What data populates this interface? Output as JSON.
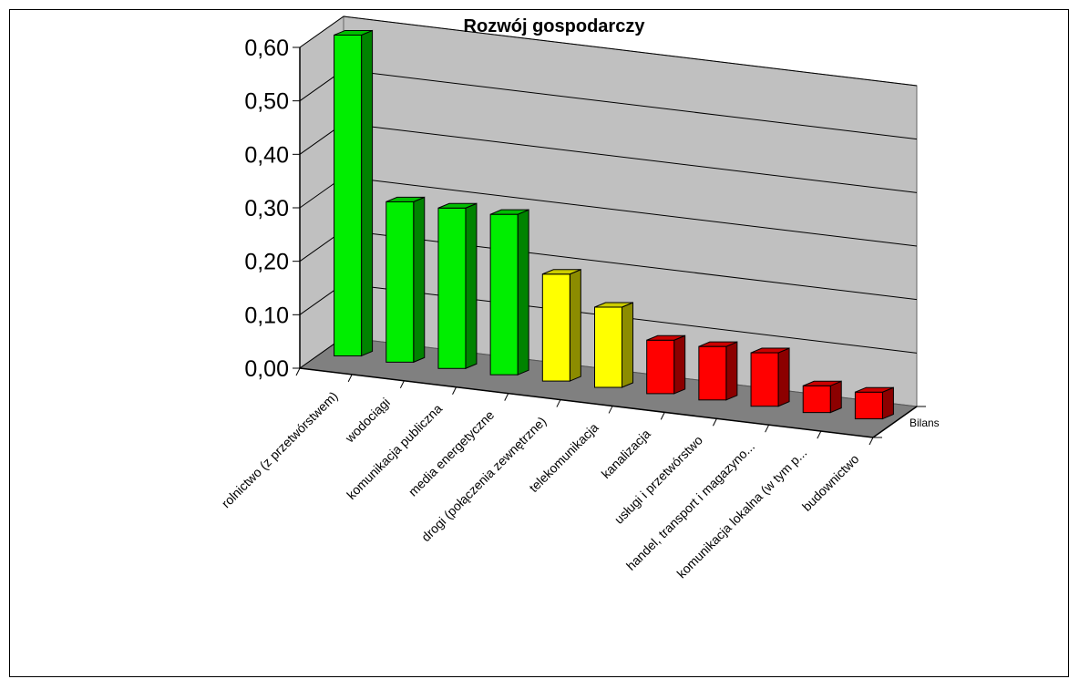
{
  "chart_data": {
    "type": "bar",
    "title": "Rozwój gospodarczy",
    "xlabel": "",
    "ylabel": "",
    "ylim": [
      0,
      0.6
    ],
    "y_ticks": [
      "0,00",
      "0,10",
      "0,20",
      "0,30",
      "0,40",
      "0,50",
      "0,60"
    ],
    "depth_category": "Bilans",
    "grid": true,
    "legend": "none",
    "categories": [
      "rolnictwo  (z przetwórstwem)",
      "wodociągi",
      "komunikacja publiczna",
      "media energetyczne",
      "drogi  (połączenia zewnętrzne)",
      "telekomunikacja",
      "kanalizacja",
      "usługi i przetwórstwo",
      "handel, transport i magazyno...",
      "komunikacja lokalna (w tym p...",
      "budownictwo"
    ],
    "series": [
      {
        "name": "Bilans",
        "values": [
          0.6,
          0.3,
          0.3,
          0.3,
          0.2,
          0.15,
          0.1,
          0.1,
          0.1,
          0.05,
          0.05
        ],
        "colors": [
          "#00ee00",
          "#00ee00",
          "#00ee00",
          "#00ee00",
          "#ffff00",
          "#ffff00",
          "#ff0000",
          "#ff0000",
          "#ff0000",
          "#ff0000",
          "#ff0000"
        ]
      }
    ],
    "colors": {
      "wall": "#c0c0c0",
      "floor": "#808080",
      "good": "#00ee00",
      "medium": "#ffff00",
      "bad": "#ff0000"
    }
  }
}
